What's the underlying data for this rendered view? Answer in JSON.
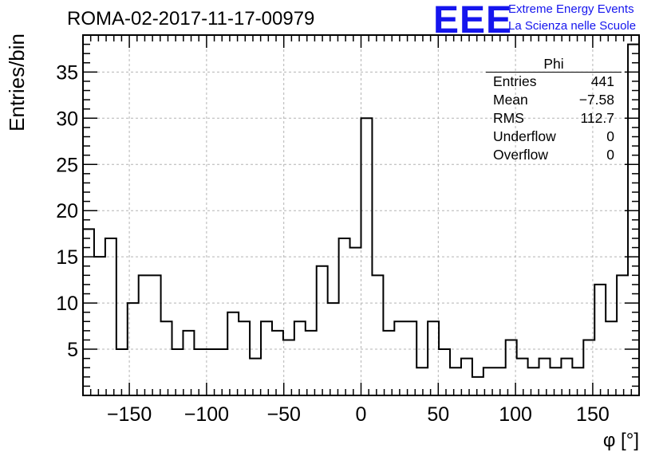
{
  "title": "ROMA-02-2017-11-17-00979",
  "logo": {
    "mark": "EEE",
    "line1": "Extreme Energy Events",
    "line2": "La Scienza nelle Scuole"
  },
  "stats": {
    "title": "Phi",
    "rows": [
      {
        "label": "Entries",
        "value": "441"
      },
      {
        "label": "Mean",
        "value": "−7.58"
      },
      {
        "label": "RMS",
        "value": "112.7"
      },
      {
        "label": "Underflow",
        "value": "0"
      },
      {
        "label": "Overflow",
        "value": "0"
      }
    ]
  },
  "chart_data": {
    "type": "histogram",
    "title": "ROMA-02-2017-11-17-00979",
    "xlabel": "φ [°]",
    "ylabel": "Entries/bin",
    "xlim": [
      -180,
      180
    ],
    "ylim": [
      0,
      39
    ],
    "grid": true,
    "bin_width": 7.2,
    "bin_edges_start": -180,
    "values": [
      18,
      15,
      17,
      5,
      10,
      13,
      13,
      8,
      5,
      7,
      5,
      5,
      5,
      9,
      8,
      4,
      8,
      7,
      6,
      8,
      7,
      14,
      10,
      17,
      16,
      30,
      13,
      7,
      8,
      8,
      3,
      8,
      5,
      3,
      4,
      2,
      3,
      3,
      6,
      4,
      3,
      4,
      3,
      4,
      3,
      6,
      12,
      8,
      13,
      38
    ],
    "xticks": [
      -150,
      -100,
      -50,
      0,
      50,
      100,
      150
    ],
    "xtick_labels": [
      "−150",
      "−100",
      "−50",
      "0",
      "50",
      "100",
      "150"
    ],
    "yticks": [
      5,
      10,
      15,
      20,
      25,
      30,
      35
    ],
    "ytick_labels": [
      "5",
      "10",
      "15",
      "20",
      "25",
      "30",
      "35"
    ],
    "line_color": "#000000",
    "grid_color": "#b4b4b4"
  }
}
